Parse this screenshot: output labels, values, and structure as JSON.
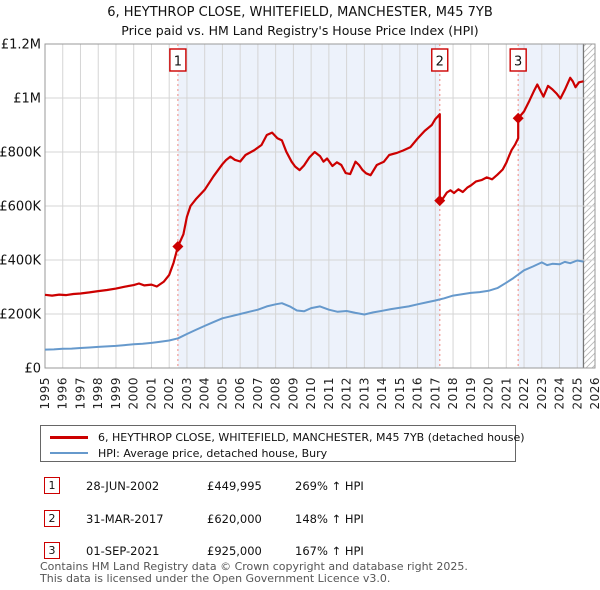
{
  "header": {
    "title": "6, HEYTHROP CLOSE, WHITEFIELD, MANCHESTER, M45 7YB",
    "subtitle": "Price paid vs. HM Land Registry's House Price Index (HPI)"
  },
  "chart_data": {
    "type": "line",
    "title": "6, HEYTHROP CLOSE, WHITEFIELD, MANCHESTER, M45 7YB",
    "subtitle": "Price paid vs. HM Land Registry's House Price Index (HPI)",
    "x_axis": {
      "min": 1995,
      "max": 2026,
      "ticks": [
        1995,
        1996,
        1997,
        1998,
        1999,
        2000,
        2001,
        2002,
        2003,
        2004,
        2005,
        2006,
        2007,
        2008,
        2009,
        2010,
        2011,
        2012,
        2013,
        2014,
        2015,
        2016,
        2017,
        2018,
        2019,
        2020,
        2021,
        2022,
        2023,
        2024,
        2025,
        2026
      ]
    },
    "y_axis": {
      "max": 1200000,
      "ticks": [
        {
          "label": "£0",
          "value": 0
        },
        {
          "label": "£200K",
          "value": 200000
        },
        {
          "label": "£400K",
          "value": 400000
        },
        {
          "label": "£600K",
          "value": 600000
        },
        {
          "label": "£800K",
          "value": 800000
        },
        {
          "label": "£1M",
          "value": 1000000
        },
        {
          "label": "£1.2M",
          "value": 1200000
        }
      ]
    },
    "colors": {
      "accent": "#cc0000",
      "hpi": "#6699cc",
      "grid": "#d5d5d5",
      "shade": "#edf2fb",
      "dashed": "#f09a93",
      "border": "#999999",
      "hatch": "#b9b9b9"
    },
    "shaded_regions": [
      [
        2002.49,
        2017.25
      ],
      [
        2021.67,
        2025.35
      ]
    ],
    "hatched_region": [
      2025.35,
      2026
    ],
    "series": [
      {
        "name": "6, HEYTHROP CLOSE, WHITEFIELD, MANCHESTER, M45 7YB (detached house)",
        "color": "#cc0000",
        "width": 2.2,
        "dataname": "price-paid-series-line",
        "points": [
          [
            1995.0,
            271000
          ],
          [
            1995.4,
            268000
          ],
          [
            1995.8,
            272000
          ],
          [
            1996.2,
            270000
          ],
          [
            1996.6,
            274000
          ],
          [
            1997.0,
            276000
          ],
          [
            1997.5,
            280000
          ],
          [
            1998.0,
            285000
          ],
          [
            1998.5,
            289000
          ],
          [
            1999.0,
            294000
          ],
          [
            1999.5,
            301000
          ],
          [
            2000.0,
            307000
          ],
          [
            2000.3,
            313000
          ],
          [
            2000.6,
            306000
          ],
          [
            2001.0,
            309000
          ],
          [
            2001.3,
            302000
          ],
          [
            2001.7,
            320000
          ],
          [
            2002.0,
            345000
          ],
          [
            2002.25,
            390000
          ],
          [
            2002.49,
            449995
          ],
          [
            2002.8,
            495000
          ],
          [
            2003.0,
            560000
          ],
          [
            2003.2,
            600000
          ],
          [
            2003.5,
            625000
          ],
          [
            2004.0,
            660000
          ],
          [
            2004.5,
            710000
          ],
          [
            2005.0,
            755000
          ],
          [
            2005.2,
            770000
          ],
          [
            2005.45,
            783000
          ],
          [
            2005.7,
            771000
          ],
          [
            2006.0,
            765000
          ],
          [
            2006.3,
            789000
          ],
          [
            2006.8,
            807000
          ],
          [
            2007.2,
            826000
          ],
          [
            2007.5,
            863000
          ],
          [
            2007.8,
            872000
          ],
          [
            2008.1,
            851000
          ],
          [
            2008.35,
            843000
          ],
          [
            2008.6,
            801000
          ],
          [
            2008.9,
            764000
          ],
          [
            2009.1,
            746000
          ],
          [
            2009.35,
            733000
          ],
          [
            2009.6,
            750000
          ],
          [
            2009.9,
            780000
          ],
          [
            2010.2,
            800000
          ],
          [
            2010.5,
            785000
          ],
          [
            2010.7,
            764000
          ],
          [
            2010.9,
            776000
          ],
          [
            2011.2,
            748000
          ],
          [
            2011.45,
            762000
          ],
          [
            2011.7,
            752000
          ],
          [
            2011.95,
            722000
          ],
          [
            2012.2,
            718000
          ],
          [
            2012.5,
            764000
          ],
          [
            2012.7,
            752000
          ],
          [
            2012.9,
            733000
          ],
          [
            2013.1,
            721000
          ],
          [
            2013.35,
            714000
          ],
          [
            2013.7,
            752000
          ],
          [
            2014.1,
            764000
          ],
          [
            2014.4,
            789000
          ],
          [
            2014.8,
            796000
          ],
          [
            2015.2,
            806000
          ],
          [
            2015.6,
            818000
          ],
          [
            2016.0,
            850000
          ],
          [
            2016.4,
            878000
          ],
          [
            2016.8,
            900000
          ],
          [
            2017.0,
            922000
          ],
          [
            2017.25,
            940000
          ],
          [
            2017.25,
            620000
          ],
          [
            2017.45,
            630000
          ],
          [
            2017.65,
            650000
          ],
          [
            2017.85,
            658000
          ],
          [
            2018.05,
            648000
          ],
          [
            2018.3,
            662000
          ],
          [
            2018.55,
            652000
          ],
          [
            2018.8,
            668000
          ],
          [
            2019.0,
            676000
          ],
          [
            2019.3,
            691000
          ],
          [
            2019.6,
            696000
          ],
          [
            2019.9,
            706000
          ],
          [
            2020.2,
            699000
          ],
          [
            2020.5,
            716000
          ],
          [
            2020.8,
            735000
          ],
          [
            2021.0,
            760000
          ],
          [
            2021.15,
            785000
          ],
          [
            2021.3,
            807000
          ],
          [
            2021.5,
            828000
          ],
          [
            2021.67,
            851000
          ],
          [
            2021.67,
            925000
          ],
          [
            2022.0,
            950000
          ],
          [
            2022.3,
            990000
          ],
          [
            2022.55,
            1025000
          ],
          [
            2022.75,
            1050000
          ],
          [
            2022.9,
            1030000
          ],
          [
            2023.1,
            1005000
          ],
          [
            2023.35,
            1045000
          ],
          [
            2023.6,
            1032000
          ],
          [
            2023.85,
            1015000
          ],
          [
            2024.05,
            998000
          ],
          [
            2024.3,
            1030000
          ],
          [
            2024.6,
            1075000
          ],
          [
            2024.75,
            1062000
          ],
          [
            2024.9,
            1040000
          ],
          [
            2025.1,
            1058000
          ],
          [
            2025.35,
            1062000
          ]
        ]
      },
      {
        "name": "HPI: Average price, detached house, Bury",
        "color": "#6699cc",
        "width": 2,
        "dataname": "hpi-series-line",
        "points": [
          [
            1995.0,
            68000
          ],
          [
            1995.5,
            69000
          ],
          [
            1996.0,
            71000
          ],
          [
            1996.5,
            72000
          ],
          [
            1997.0,
            74000
          ],
          [
            1997.5,
            76000
          ],
          [
            1998.0,
            78000
          ],
          [
            1998.5,
            80000
          ],
          [
            1999.0,
            82000
          ],
          [
            1999.5,
            85000
          ],
          [
            2000.0,
            88000
          ],
          [
            2000.5,
            90000
          ],
          [
            2001.0,
            93000
          ],
          [
            2001.5,
            97000
          ],
          [
            2002.0,
            102000
          ],
          [
            2002.5,
            110000
          ],
          [
            2003.0,
            126000
          ],
          [
            2003.5,
            141000
          ],
          [
            2004.0,
            156000
          ],
          [
            2004.5,
            170000
          ],
          [
            2005.0,
            184000
          ],
          [
            2005.5,
            192000
          ],
          [
            2006.0,
            200000
          ],
          [
            2006.5,
            208000
          ],
          [
            2007.0,
            216000
          ],
          [
            2007.5,
            228000
          ],
          [
            2008.0,
            236000
          ],
          [
            2008.35,
            240000
          ],
          [
            2008.8,
            228000
          ],
          [
            2009.2,
            213000
          ],
          [
            2009.6,
            210000
          ],
          [
            2010.0,
            222000
          ],
          [
            2010.5,
            228000
          ],
          [
            2011.0,
            216000
          ],
          [
            2011.5,
            208000
          ],
          [
            2012.0,
            211000
          ],
          [
            2012.5,
            204000
          ],
          [
            2013.0,
            198000
          ],
          [
            2013.5,
            206000
          ],
          [
            2014.0,
            212000
          ],
          [
            2014.5,
            218000
          ],
          [
            2015.0,
            223000
          ],
          [
            2015.5,
            228000
          ],
          [
            2016.0,
            236000
          ],
          [
            2016.5,
            243000
          ],
          [
            2017.0,
            250000
          ],
          [
            2017.5,
            258000
          ],
          [
            2018.0,
            268000
          ],
          [
            2018.5,
            273000
          ],
          [
            2019.0,
            278000
          ],
          [
            2019.5,
            281000
          ],
          [
            2020.0,
            286000
          ],
          [
            2020.5,
            296000
          ],
          [
            2021.0,
            316000
          ],
          [
            2021.4,
            333000
          ],
          [
            2021.67,
            346000
          ],
          [
            2022.0,
            362000
          ],
          [
            2022.5,
            376000
          ],
          [
            2023.0,
            391000
          ],
          [
            2023.3,
            381000
          ],
          [
            2023.6,
            386000
          ],
          [
            2024.0,
            384000
          ],
          [
            2024.3,
            393000
          ],
          [
            2024.6,
            388000
          ],
          [
            2025.0,
            398000
          ],
          [
            2025.35,
            394000
          ]
        ]
      }
    ],
    "sales": [
      {
        "label": "1",
        "year": 2002.49,
        "price": 449995,
        "date": "28-JUN-2002",
        "price_label": "£449,995",
        "hpi_change": "269% ↑ HPI"
      },
      {
        "label": "2",
        "year": 2017.25,
        "price": 620000,
        "date": "31-MAR-2017",
        "price_label": "£620,000",
        "hpi_change": "148% ↑ HPI"
      },
      {
        "label": "3",
        "year": 2021.67,
        "price": 925000,
        "date": "01-SEP-2021",
        "price_label": "£925,000",
        "hpi_change": "167% ↑ HPI"
      }
    ]
  },
  "legend": {
    "items": [
      {
        "label": "6, HEYTHROP CLOSE, WHITEFIELD, MANCHESTER, M45 7YB (detached house)"
      },
      {
        "label": "HPI: Average price, detached house, Bury"
      }
    ]
  },
  "footer": {
    "line1": "Contains HM Land Registry data © Crown copyright and database right 2025.",
    "line2": "This data is licensed under the Open Government Licence v3.0."
  }
}
